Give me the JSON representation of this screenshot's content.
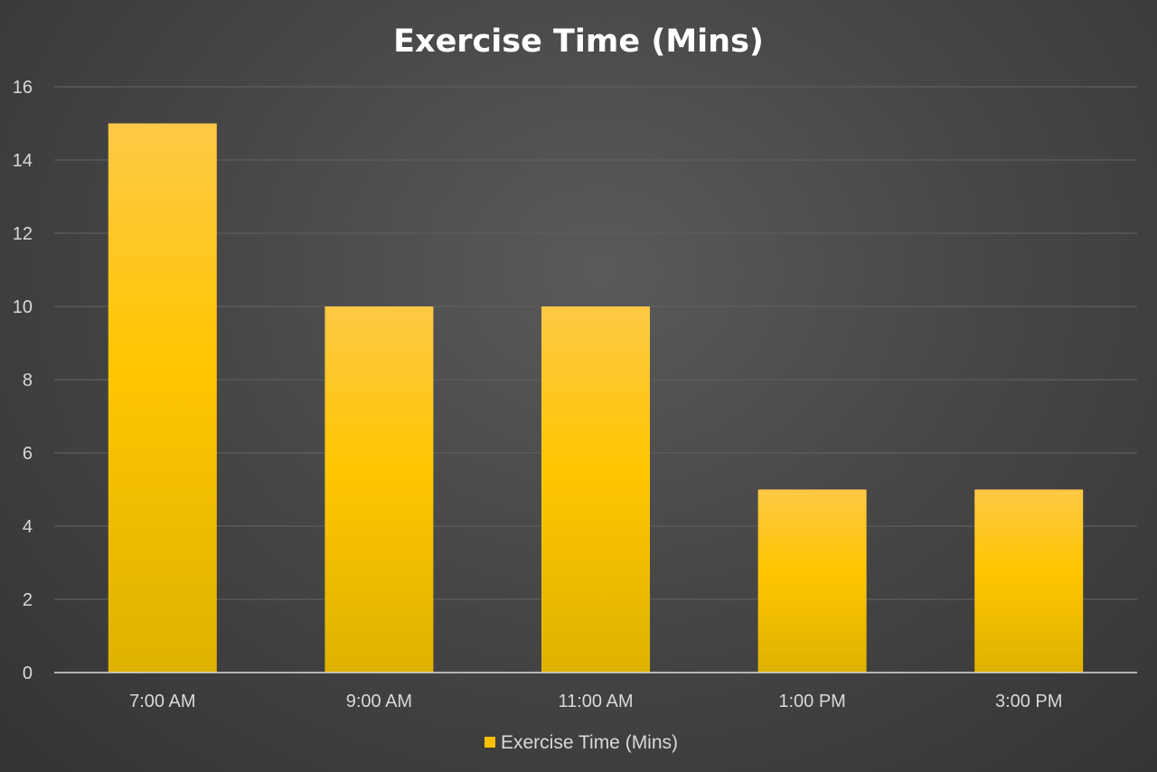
{
  "chart_data": {
    "type": "bar",
    "title": "Exercise Time (Mins)",
    "categories": [
      "7:00 AM",
      "9:00 AM",
      "11:00 AM",
      "1:00 PM",
      "3:00 PM"
    ],
    "series": [
      {
        "name": "Exercise Time (Mins)",
        "values": [
          15,
          10,
          10,
          5,
          5
        ],
        "color": "#ffc000"
      }
    ],
    "ylim": [
      0,
      16
    ],
    "yticks": [
      "0",
      "2",
      "4",
      "6",
      "8",
      "10",
      "12",
      "14",
      "16"
    ],
    "grid": true,
    "legend": "bottom"
  },
  "colors": {
    "bar_top": "#ffc845",
    "bar_mid": "#ffc600",
    "bar_bottom": "#dfb100",
    "gridline": "#5e5e5e",
    "axis_line": "#d9d9d9",
    "text": "#d9d9d9",
    "title": "#ffffff"
  }
}
